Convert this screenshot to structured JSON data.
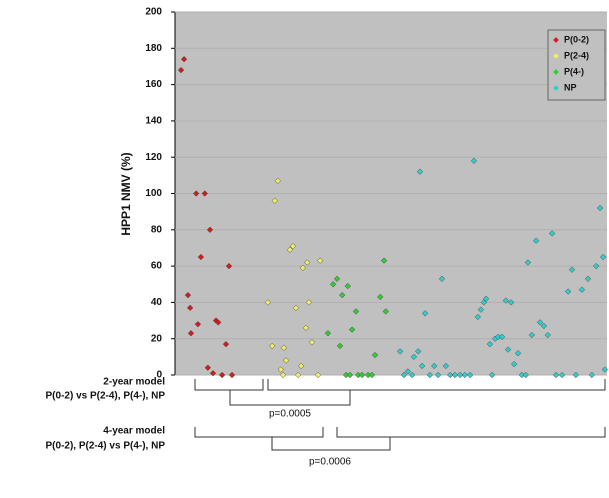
{
  "chart_data": {
    "type": "scatter",
    "y_label": "HPP1 NMV (%)",
    "xlim": [
      0,
      100
    ],
    "ylim": [
      0,
      200
    ],
    "yticks": [
      0,
      20,
      40,
      60,
      80,
      100,
      120,
      140,
      160,
      180,
      200
    ],
    "grid": true,
    "legend": "upper-right",
    "series": [
      {
        "name": "P(0-2)",
        "color": "#d41c1c",
        "x": [
          1.4,
          2.1,
          3.0,
          3.5,
          3.7,
          4.9,
          5.3,
          6.0,
          6.9,
          7.6,
          8.1,
          8.8,
          9.5,
          10.0,
          10.9,
          11.8,
          12.5,
          13.2
        ],
        "values": [
          168,
          174,
          44,
          37,
          23,
          100,
          28,
          65,
          100,
          4,
          80,
          1,
          30,
          29,
          0,
          17,
          60,
          0
        ]
      },
      {
        "name": "P(2-4)",
        "color": "#eeee66",
        "x": [
          21.5,
          22.5,
          23.1,
          23.8,
          24.5,
          25.0,
          25.2,
          25.7,
          26.6,
          27.3,
          28.0,
          28.5,
          29.2,
          29.6,
          30.3,
          30.6,
          31.0,
          31.7,
          33.1,
          33.6
        ],
        "values": [
          40,
          16,
          96,
          107,
          3,
          0,
          15,
          8,
          69,
          71,
          37,
          0,
          5,
          59,
          26,
          62,
          40,
          18,
          0,
          63
        ]
      },
      {
        "name": "P(4-)",
        "color": "#33cc33",
        "x": [
          35.4,
          36.6,
          37.5,
          38.2,
          38.7,
          39.6,
          40.0,
          40.5,
          41.0,
          41.9,
          42.4,
          43.3,
          44.7,
          45.6,
          46.3,
          47.5,
          48.4,
          48.8
        ],
        "values": [
          23,
          50,
          53,
          16,
          44,
          0,
          49,
          0,
          25,
          35,
          0,
          0,
          0,
          0,
          11,
          43,
          63,
          35
        ]
      },
      {
        "name": "NP",
        "color": "#33cccc",
        "x": [
          52.1,
          53.0,
          53.9,
          54.9,
          55.3,
          56.3,
          56.7,
          57.2,
          57.9,
          59.0,
          60.0,
          60.9,
          61.8,
          62.7,
          63.7,
          64.8,
          66.0,
          67.1,
          68.3,
          69.2,
          70.1,
          70.8,
          71.5,
          72.0,
          72.9,
          73.4,
          74.1,
          74.8,
          75.7,
          76.6,
          77.1,
          77.8,
          78.5,
          79.4,
          80.3,
          81.2,
          81.7,
          82.6,
          83.6,
          84.5,
          85.4,
          86.3,
          87.3,
          88.2,
          89.6,
          91.0,
          91.9,
          92.8,
          94.2,
          95.6,
          96.5,
          97.5,
          98.4,
          99.1,
          99.5
        ],
        "values": [
          13,
          0,
          2,
          0,
          10,
          13,
          112,
          5,
          34,
          0,
          5,
          0,
          53,
          5,
          0,
          0,
          0,
          0,
          0,
          118,
          32,
          36,
          40,
          42,
          17,
          0,
          20,
          21,
          21,
          41,
          14,
          40,
          6,
          12,
          0,
          0,
          62,
          22,
          74,
          29,
          27,
          22,
          78,
          0,
          0,
          46,
          58,
          0,
          47,
          53,
          0,
          60,
          92,
          65,
          3
        ]
      }
    ],
    "annotations": [
      "2-year model",
      "P(0-2) vs P(2-4), P(4-), NP",
      "p=0.0005",
      "4-year model",
      "P(0-2), P(2-4) vs P(4-), NP",
      "p=0.0006"
    ]
  }
}
